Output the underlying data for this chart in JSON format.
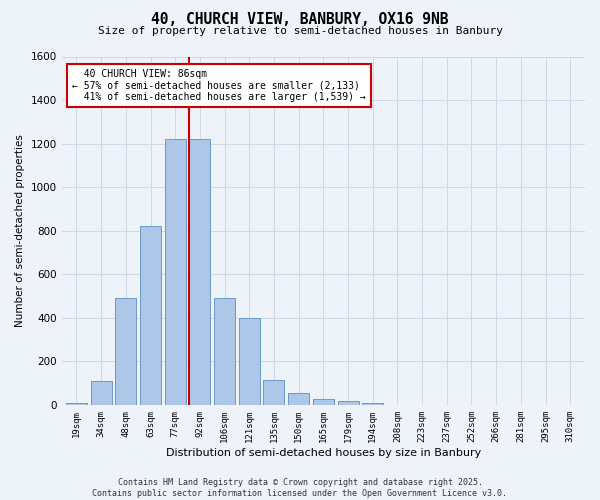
{
  "title": "40, CHURCH VIEW, BANBURY, OX16 9NB",
  "subtitle": "Size of property relative to semi-detached houses in Banbury",
  "xlabel": "Distribution of semi-detached houses by size in Banbury",
  "ylabel": "Number of semi-detached properties",
  "bar_labels": [
    "19sqm",
    "34sqm",
    "48sqm",
    "63sqm",
    "77sqm",
    "92sqm",
    "106sqm",
    "121sqm",
    "135sqm",
    "150sqm",
    "165sqm",
    "179sqm",
    "194sqm",
    "208sqm",
    "223sqm",
    "237sqm",
    "252sqm",
    "266sqm",
    "281sqm",
    "295sqm",
    "310sqm"
  ],
  "bar_values": [
    10,
    110,
    490,
    820,
    1220,
    1220,
    490,
    400,
    115,
    55,
    25,
    18,
    10,
    0,
    0,
    0,
    0,
    0,
    0,
    0,
    0
  ],
  "bar_color": "#aec6e8",
  "bar_edge_color": "#5a8fc2",
  "property_label": "40 CHURCH VIEW: 86sqm",
  "smaller_pct": "57%",
  "smaller_count": "2,133",
  "larger_pct": "41%",
  "larger_count": "1,539",
  "red_line_color": "#cc0000",
  "red_line_x": 4.55,
  "ylim": [
    0,
    1600
  ],
  "yticks": [
    0,
    200,
    400,
    600,
    800,
    1000,
    1200,
    1400,
    1600
  ],
  "annotation_box_color": "#ffffff",
  "annotation_box_edge": "#cc0000",
  "grid_color": "#d0d8e8",
  "background_color": "#eef2f9",
  "footer_text": "Contains HM Land Registry data © Crown copyright and database right 2025.\nContains public sector information licensed under the Open Government Licence v3.0."
}
